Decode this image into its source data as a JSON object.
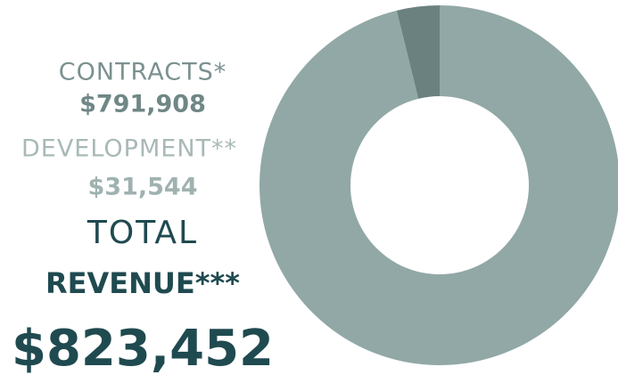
{
  "chart_data": {
    "type": "pie",
    "categories": [
      "CONTRACTS*",
      "DEVELOPMENT**"
    ],
    "values": [
      791908,
      31544
    ],
    "value_labels": [
      "$791,908",
      "$31,544"
    ],
    "colors": [
      "#91a8a6",
      "#6b8180"
    ],
    "donut": true,
    "total_heading": [
      "TOTAL",
      "REVENUE***"
    ],
    "total": 823452,
    "total_label": "$823,452"
  }
}
